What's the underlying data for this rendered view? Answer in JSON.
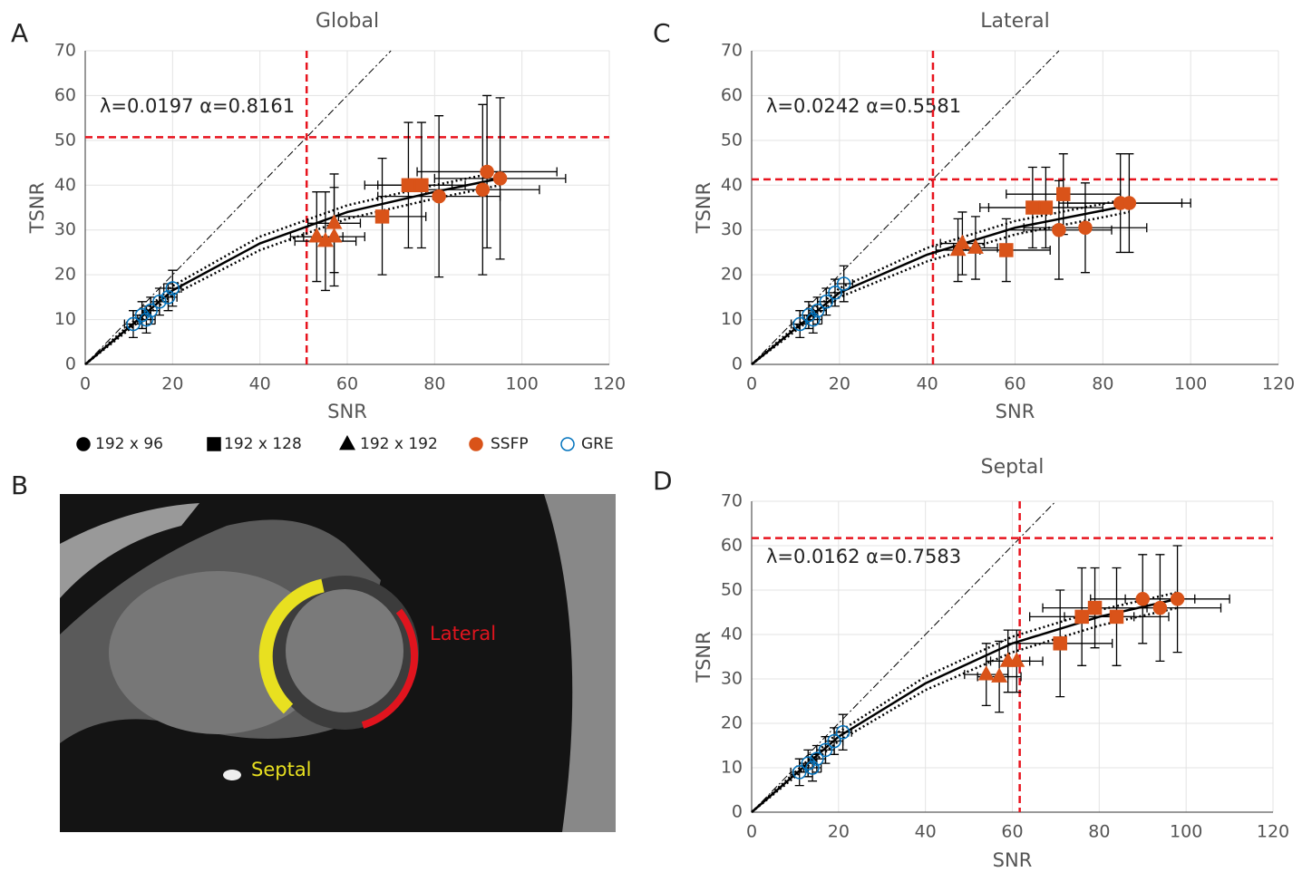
{
  "legend": [
    {
      "label": "192 x 96",
      "marker": "circle",
      "color": "#000000",
      "filled": true
    },
    {
      "label": "192 x 128",
      "marker": "square",
      "color": "#000000",
      "filled": true
    },
    {
      "label": "192 x 192",
      "marker": "triangle",
      "color": "#000000",
      "filled": true
    },
    {
      "label": "SSFP",
      "marker": "circle",
      "color": "#d95319",
      "filled": true
    },
    {
      "label": "GRE",
      "marker": "circle",
      "color": "#0072bd",
      "filled": false
    }
  ],
  "image": {
    "panel": "B",
    "labels": [
      "Septal",
      "Lateral"
    ]
  },
  "chart_data": [
    {
      "type": "scatter",
      "panel": "A",
      "title": "Global",
      "xlabel": "SNR",
      "ylabel": "TSNR",
      "annotation": "λ=0.0197 α=0.8161",
      "threshold": 50.7,
      "xlim": [
        0,
        120
      ],
      "ylim": [
        0,
        70
      ],
      "xticks": [
        0,
        20,
        40,
        60,
        80,
        100,
        120
      ],
      "yticks": [
        0,
        10,
        20,
        30,
        40,
        50,
        60,
        70
      ],
      "grid": true,
      "fit": {
        "x": [
          0,
          20,
          40,
          60,
          80,
          95
        ],
        "y": [
          0,
          16.5,
          27,
          34,
          38.5,
          41.5
        ]
      },
      "fit_lower": {
        "x": [
          0,
          20,
          40,
          60,
          80,
          95
        ],
        "y": [
          0,
          15.5,
          25.5,
          32.5,
          37,
          40
        ]
      },
      "fit_upper": {
        "x": [
          0,
          20,
          40,
          60,
          80,
          95
        ],
        "y": [
          0,
          17.5,
          28.5,
          35.5,
          40,
          43
        ]
      },
      "series": [
        {
          "marker": "circle",
          "color": "#d95319",
          "filled": true,
          "x": [
            92,
            95,
            81,
            91
          ],
          "y": [
            43,
            41.5,
            37.5,
            39
          ],
          "xerr": [
            16,
            15,
            14,
            13
          ],
          "yerr": [
            17,
            18,
            18,
            19
          ]
        },
        {
          "marker": "square",
          "color": "#d95319",
          "filled": true,
          "x": [
            74,
            77,
            68
          ],
          "y": [
            40,
            40,
            33
          ],
          "xerr": [
            10,
            10,
            10
          ],
          "yerr": [
            14,
            14,
            13
          ]
        },
        {
          "marker": "triangle",
          "color": "#d95319",
          "filled": true,
          "x": [
            53,
            55,
            57,
            57
          ],
          "y": [
            28.5,
            27.5,
            28.5,
            31.5
          ],
          "xerr": [
            6,
            7,
            7,
            6
          ],
          "yerr": [
            10,
            11,
            11,
            11
          ]
        },
        {
          "marker": "circle",
          "color": "#0072bd",
          "filled": false,
          "x": [
            11,
            13,
            15,
            17,
            19,
            20,
            14
          ],
          "y": [
            9,
            11,
            12,
            14,
            15,
            17,
            10
          ],
          "xerr": [
            2,
            2,
            2,
            2,
            2,
            2,
            2
          ],
          "yerr": [
            3,
            3,
            3,
            3,
            3,
            4,
            3
          ]
        }
      ]
    },
    {
      "type": "scatter",
      "panel": "C",
      "title": "Lateral",
      "xlabel": "SNR",
      "ylabel": "TSNR",
      "annotation": "λ=0.0242 α=0.5581",
      "threshold": 41.3,
      "xlim": [
        0,
        120
      ],
      "ylim": [
        0,
        70
      ],
      "xticks": [
        0,
        20,
        40,
        60,
        80,
        100,
        120
      ],
      "yticks": [
        0,
        10,
        20,
        30,
        40,
        50,
        60,
        70
      ],
      "grid": true,
      "fit": {
        "x": [
          0,
          20,
          40,
          60,
          86
        ],
        "y": [
          0,
          16,
          24.5,
          30.5,
          35.5
        ]
      },
      "fit_lower": {
        "x": [
          0,
          20,
          40,
          60,
          86
        ],
        "y": [
          0,
          15,
          23,
          29,
          34
        ]
      },
      "fit_upper": {
        "x": [
          0,
          20,
          40,
          60,
          86
        ],
        "y": [
          0,
          17,
          26,
          32,
          37
        ]
      },
      "series": [
        {
          "marker": "circle",
          "color": "#d95319",
          "filled": true,
          "x": [
            70,
            76,
            84,
            86
          ],
          "y": [
            30,
            30.5,
            36,
            36
          ],
          "xerr": [
            12,
            14,
            14,
            14
          ],
          "yerr": [
            11,
            10,
            11,
            11
          ]
        },
        {
          "marker": "square",
          "color": "#d95319",
          "filled": true,
          "x": [
            58,
            64,
            67,
            71
          ],
          "y": [
            25.5,
            35,
            35,
            38
          ],
          "xerr": [
            10,
            12,
            13,
            13
          ],
          "yerr": [
            7,
            9,
            9,
            9
          ]
        },
        {
          "marker": "triangle",
          "color": "#d95319",
          "filled": true,
          "x": [
            47,
            48,
            51
          ],
          "y": [
            25.5,
            27,
            26
          ],
          "xerr": [
            5,
            5,
            5
          ],
          "yerr": [
            7,
            7,
            7
          ]
        },
        {
          "marker": "circle",
          "color": "#0072bd",
          "filled": false,
          "x": [
            11,
            13,
            15,
            17,
            19,
            21,
            14
          ],
          "y": [
            9,
            11,
            12,
            14,
            16,
            18,
            10
          ],
          "xerr": [
            2,
            2,
            2,
            2,
            2,
            2,
            2
          ],
          "yerr": [
            3,
            3,
            3,
            3,
            3,
            4,
            3
          ]
        }
      ]
    },
    {
      "type": "scatter",
      "panel": "D",
      "title": "Septal",
      "xlabel": "SNR",
      "ylabel": "TSNR",
      "annotation": "λ=0.0162 α=0.7583",
      "threshold": 61.7,
      "xlim": [
        0,
        120
      ],
      "ylim": [
        0,
        70
      ],
      "xticks": [
        0,
        20,
        40,
        60,
        80,
        100,
        120
      ],
      "yticks": [
        0,
        10,
        20,
        30,
        40,
        50,
        60,
        70
      ],
      "grid": true,
      "fit": {
        "x": [
          0,
          20,
          40,
          60,
          80,
          98
        ],
        "y": [
          0,
          17,
          29,
          38,
          44,
          48
        ]
      },
      "fit_lower": {
        "x": [
          0,
          20,
          40,
          60,
          80,
          98
        ],
        "y": [
          0,
          16,
          27.5,
          36,
          42,
          46
        ]
      },
      "fit_upper": {
        "x": [
          0,
          20,
          40,
          60,
          80,
          98
        ],
        "y": [
          0,
          18,
          30.5,
          39.5,
          45.5,
          49.5
        ]
      },
      "series": [
        {
          "marker": "circle",
          "color": "#d95319",
          "filled": true,
          "x": [
            90,
            94,
            98
          ],
          "y": [
            48,
            46,
            48
          ],
          "xerr": [
            12,
            14,
            12
          ],
          "yerr": [
            10,
            12,
            12
          ]
        },
        {
          "marker": "square",
          "color": "#d95319",
          "filled": true,
          "x": [
            71,
            76,
            79,
            84
          ],
          "y": [
            38,
            44,
            46,
            44
          ],
          "xerr": [
            12,
            12,
            12,
            12
          ],
          "yerr": [
            12,
            11,
            9,
            11
          ]
        },
        {
          "marker": "triangle",
          "color": "#d95319",
          "filled": true,
          "x": [
            54,
            57,
            59,
            61
          ],
          "y": [
            31,
            30.5,
            34,
            34
          ],
          "xerr": [
            5,
            5,
            5,
            6
          ],
          "yerr": [
            7,
            8,
            7,
            7
          ]
        },
        {
          "marker": "circle",
          "color": "#0072bd",
          "filled": false,
          "x": [
            11,
            13,
            15,
            17,
            19,
            21,
            14
          ],
          "y": [
            9,
            11,
            12,
            14,
            16,
            18,
            10
          ],
          "xerr": [
            2,
            2,
            2,
            2,
            2,
            2,
            2
          ],
          "yerr": [
            3,
            3,
            3,
            3,
            3,
            4,
            3
          ]
        }
      ]
    }
  ]
}
